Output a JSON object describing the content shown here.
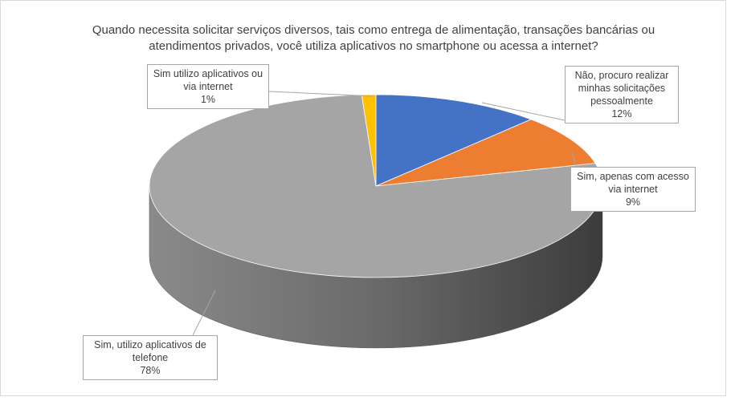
{
  "chart_data": {
    "type": "pie",
    "title": "Quando necessita solicitar serviços diversos, tais como entrega de alimentação, transações bancárias ou atendimentos privados, você utiliza aplicativos no smartphone ou acessa a internet?",
    "categories": [
      "Não, procuro realizar minhas solicitações pessoalmente",
      "Sim, apenas com acesso via internet",
      "Sim, utilizo aplicativos de telefone",
      "Sim utilizo aplicativos ou via internet"
    ],
    "values": [
      12,
      9,
      78,
      1
    ],
    "value_labels": [
      "12%",
      "9%",
      "78%",
      "1%"
    ],
    "colors": [
      "#4472c4",
      "#ed7d31",
      "#a5a5a5",
      "#ffc000"
    ]
  }
}
